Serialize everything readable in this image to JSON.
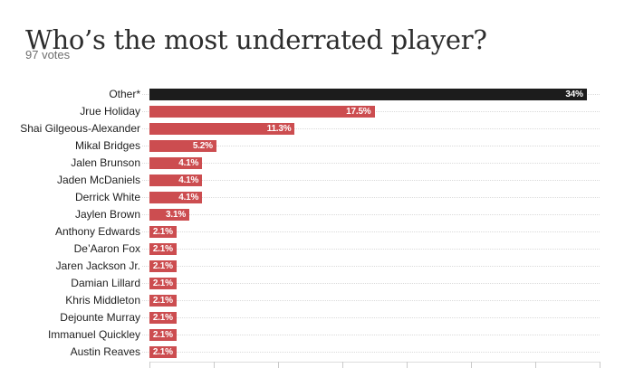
{
  "header": {
    "title": "Who’s the most underrated player?",
    "subtitle": "97 votes"
  },
  "chart_data": {
    "type": "bar",
    "orientation": "horizontal",
    "title": "Who’s the most underrated player?",
    "subtitle": "97 votes",
    "categories": [
      "Other*",
      "Jrue Holiday",
      "Shai Gilgeous-Alexander",
      "Mikal Bridges",
      "Jalen Brunson",
      "Jaden McDaniels",
      "Derrick White",
      "Jaylen Brown",
      "Anthony Edwards",
      "De’Aaron Fox",
      "Jaren Jackson Jr.",
      "Damian Lillard",
      "Khris Middleton",
      "Dejounte Murray",
      "Immanuel Quickley",
      "Austin Reaves"
    ],
    "values": [
      34,
      17.5,
      11.3,
      5.2,
      4.1,
      4.1,
      4.1,
      3.1,
      2.1,
      2.1,
      2.1,
      2.1,
      2.1,
      2.1,
      2.1,
      2.1
    ],
    "value_labels": [
      "34%",
      "17.5%",
      "11.3%",
      "5.2%",
      "4.1%",
      "4.1%",
      "4.1%",
      "3.1%",
      "2.1%",
      "2.1%",
      "2.1%",
      "2.1%",
      "2.1%",
      "2.1%",
      "2.1%",
      "2.1%"
    ],
    "xlim": [
      0,
      35
    ],
    "axis_ticks_percent": [
      0,
      5,
      10,
      15,
      20,
      25,
      30,
      35
    ],
    "axis_tick_labels_visible": false,
    "grid": "row-leader-lines",
    "legend": "none",
    "highlight_category": "Other*",
    "colors": {
      "highlight_bar": "#1c1c1c",
      "default_bar": "#cc4d50",
      "value_text": "#ffffff",
      "label_text": "#1f1f1f",
      "title_text": "#2d2d2d",
      "subtitle_text": "#6e6e6e",
      "leader_line": "#dadada",
      "axis_line": "#dcdcdc"
    }
  }
}
